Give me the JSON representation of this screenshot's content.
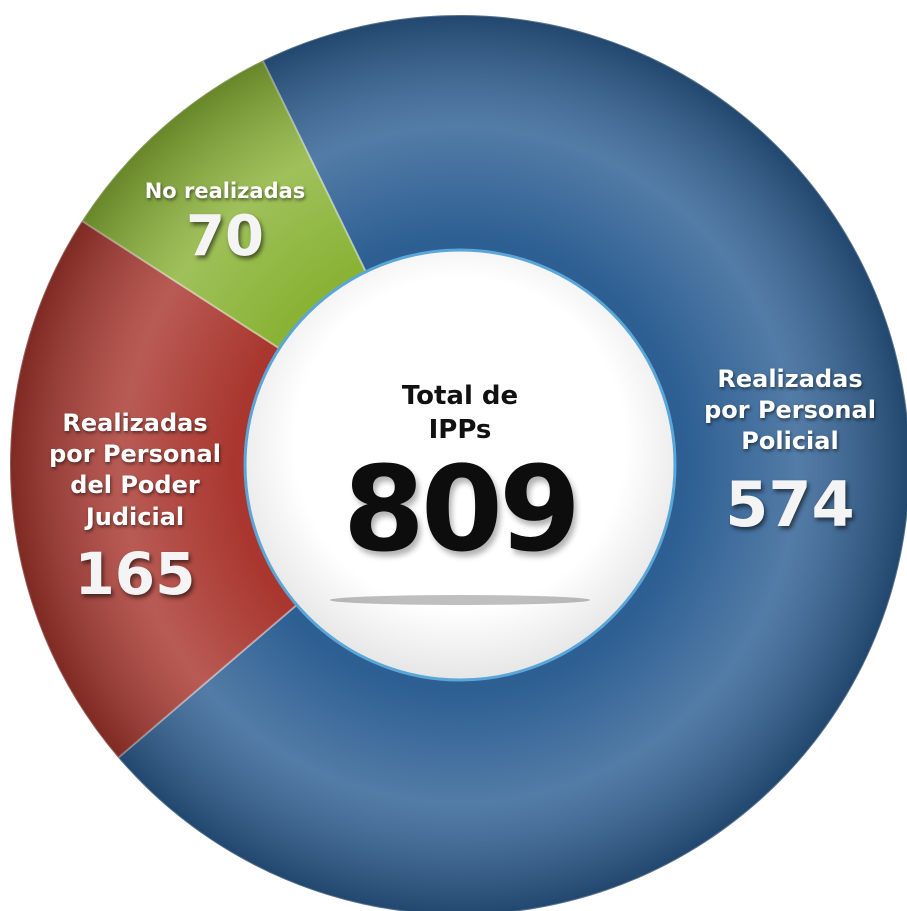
{
  "chart_data": {
    "type": "donut",
    "categories": [
      "Realizadas por Personal Policial",
      "Realizadas por Personal del Poder Judicial",
      "No realizadas"
    ],
    "values": [
      574,
      165,
      70
    ],
    "colors": [
      "#2d5f93",
      "#a9372f",
      "#8ab336"
    ],
    "center_title": "Total de IPPs",
    "total": 809
  }
}
